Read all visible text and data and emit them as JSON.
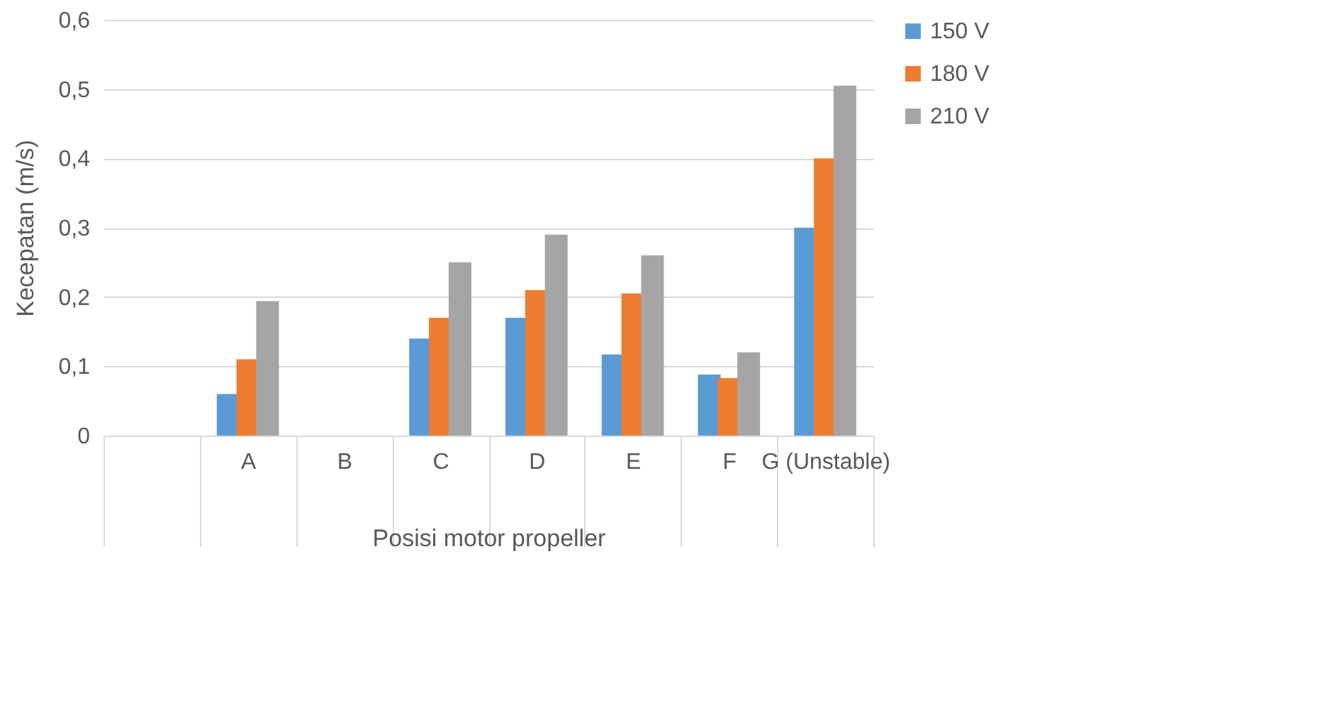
{
  "chart_data": {
    "type": "bar",
    "xlabel": "Posisi motor propeller",
    "ylabel": "Kecepatan  (m/s)",
    "categories": [
      null,
      "A",
      "B",
      "C",
      "D",
      "E",
      "F",
      "G (Unstable)"
    ],
    "series": [
      {
        "name": "150 V",
        "color": "#5b9bd5",
        "values": [
          null,
          0.06,
          0,
          0.14,
          0.17,
          0.117,
          0.088,
          0.3
        ]
      },
      {
        "name": "180 V",
        "color": "#ed7d31",
        "values": [
          null,
          0.11,
          0,
          0.17,
          0.21,
          0.205,
          0.083,
          0.4
        ]
      },
      {
        "name": "210 V",
        "color": "#a5a5a5",
        "values": [
          null,
          0.194,
          0,
          0.25,
          0.29,
          0.26,
          0.12,
          0.505
        ]
      }
    ],
    "ylim": [
      0,
      0.6
    ],
    "yticks": [
      {
        "value": 0,
        "label": "0"
      },
      {
        "value": 0.1,
        "label": "0,1"
      },
      {
        "value": 0.2,
        "label": "0,2"
      },
      {
        "value": 0.3,
        "label": "0,3"
      },
      {
        "value": 0.4,
        "label": "0,4"
      },
      {
        "value": 0.5,
        "label": "0,5"
      },
      {
        "value": 0.6,
        "label": "0,6"
      }
    ],
    "grid": "y",
    "legend": "right"
  }
}
